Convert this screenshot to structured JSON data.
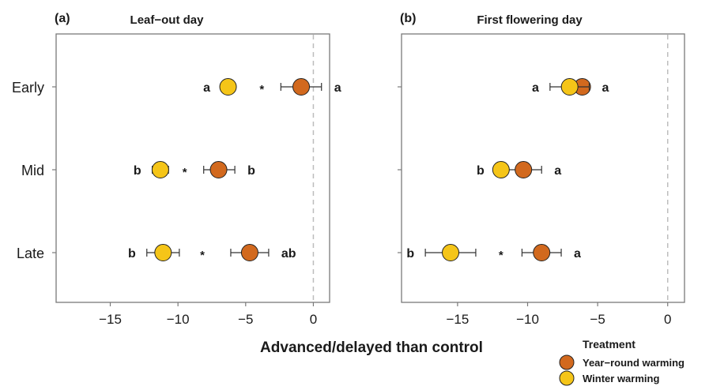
{
  "colors": {
    "year_round": "#d2691e",
    "winter": "#f5c518",
    "axis": "#7a7a7a",
    "zero_line": "#bdbdbd",
    "text": "#1a1a1a"
  },
  "xlabel": "Advanced/delayed than control",
  "legend": {
    "title": "Treatment",
    "items": [
      {
        "label": "Year−round warming",
        "color_key": "year_round"
      },
      {
        "label": "Winter warming",
        "color_key": "winter"
      }
    ]
  },
  "chart_data": [
    {
      "type": "scatter",
      "panel_label": "(a)",
      "title": "Leaf−out day",
      "categories": [
        "Early",
        "Mid",
        "Late"
      ],
      "xlim": [
        -19,
        1.2
      ],
      "xticks": [
        -15,
        -10,
        -5,
        0
      ],
      "xtick_labels": [
        "−15",
        "−10",
        "−5",
        "0"
      ],
      "reference_line": 0,
      "series": [
        {
          "name": "Year−round warming",
          "color_key": "year_round",
          "points": [
            {
              "category": "Early",
              "mean": -0.9,
              "low": -2.4,
              "high": 0.6,
              "letter": "a"
            },
            {
              "category": "Mid",
              "mean": -7.0,
              "low": -8.1,
              "high": -5.8,
              "letter": "b"
            },
            {
              "category": "Late",
              "mean": -4.7,
              "low": -6.1,
              "high": -3.3,
              "letter": "ab"
            }
          ]
        },
        {
          "name": "Winter warming",
          "color_key": "winter",
          "points": [
            {
              "category": "Early",
              "mean": -6.3,
              "low": -6.8,
              "high": -5.8,
              "letter": "a"
            },
            {
              "category": "Mid",
              "mean": -11.3,
              "low": -11.9,
              "high": -10.7,
              "letter": "b"
            },
            {
              "category": "Late",
              "mean": -11.1,
              "low": -12.3,
              "high": -9.9,
              "letter": "b"
            }
          ]
        }
      ],
      "significance": [
        {
          "category": "Early",
          "x": -3.8,
          "mark": "*"
        },
        {
          "category": "Mid",
          "x": -9.5,
          "mark": "*"
        },
        {
          "category": "Late",
          "x": -8.2,
          "mark": "*"
        }
      ]
    },
    {
      "type": "scatter",
      "panel_label": "(b)",
      "title": "First flowering day",
      "categories": [
        "Early",
        "Mid",
        "Late"
      ],
      "xlim": [
        -19,
        1.2
      ],
      "xticks": [
        -15,
        -10,
        -5,
        0
      ],
      "xtick_labels": [
        "−15",
        "−10",
        "−5",
        "0"
      ],
      "reference_line": 0,
      "series": [
        {
          "name": "Year−round warming",
          "color_key": "year_round",
          "points": [
            {
              "category": "Early",
              "mean": -6.1,
              "low": -6.6,
              "high": -5.6,
              "letter": "a"
            },
            {
              "category": "Mid",
              "mean": -10.3,
              "low": -11.5,
              "high": -9.0,
              "letter": "a"
            },
            {
              "category": "Late",
              "mean": -9.0,
              "low": -10.4,
              "high": -7.6,
              "letter": "a"
            }
          ]
        },
        {
          "name": "Winter warming",
          "color_key": "winter",
          "points": [
            {
              "category": "Early",
              "mean": -7.0,
              "low": -8.4,
              "high": -5.6,
              "letter": "a"
            },
            {
              "category": "Mid",
              "mean": -11.9,
              "low": -12.3,
              "high": -11.5,
              "letter": "b"
            },
            {
              "category": "Late",
              "mean": -15.5,
              "low": -17.3,
              "high": -13.7,
              "letter": "b"
            }
          ]
        }
      ],
      "significance": [
        {
          "category": "Late",
          "x": -11.9,
          "mark": "*"
        }
      ]
    }
  ]
}
